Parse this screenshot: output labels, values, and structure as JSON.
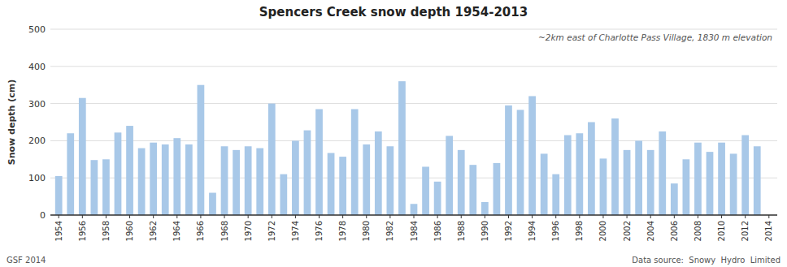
{
  "chart_data": {
    "type": "bar",
    "title": "Spencers Creek snow depth 1954-2013",
    "subtitle": "~2km east of Charlotte Pass Village, 1830 m elevation",
    "y_label": "Snow depth (cm)",
    "annotations": [
      "GSF 2014",
      "Data source:  Snowy  Hydro  Limited"
    ],
    "x": [
      1954,
      1955,
      1956,
      1957,
      1958,
      1959,
      1960,
      1961,
      1962,
      1963,
      1964,
      1965,
      1966,
      1967,
      1968,
      1969,
      1970,
      1971,
      1972,
      1973,
      1974,
      1975,
      1976,
      1977,
      1978,
      1979,
      1980,
      1981,
      1982,
      1983,
      1984,
      1985,
      1986,
      1987,
      1988,
      1989,
      1990,
      1991,
      1992,
      1993,
      1994,
      1995,
      1996,
      1997,
      1998,
      1999,
      2000,
      2001,
      2002,
      2003,
      2004,
      2005,
      2006,
      2007,
      2008,
      2009,
      2010,
      2011,
      2012,
      2013,
      2014
    ],
    "values": [
      105,
      220,
      315,
      148,
      150,
      222,
      240,
      180,
      195,
      190,
      207,
      190,
      350,
      60,
      185,
      175,
      185,
      180,
      300,
      110,
      200,
      228,
      285,
      167,
      157,
      285,
      190,
      225,
      185,
      360,
      30,
      130,
      90,
      213,
      175,
      135,
      35,
      140,
      295,
      283,
      320,
      165,
      110,
      215,
      220,
      250,
      152,
      260,
      175,
      200,
      175,
      225,
      85,
      150,
      195,
      170,
      195,
      165,
      215,
      185,
      0
    ],
    "color": "#a8c8e8",
    "xlim": [
      1953.3,
      2014.7
    ],
    "xticks": [
      1954,
      1956,
      1958,
      1960,
      1962,
      1964,
      1966,
      1968,
      1970,
      1972,
      1974,
      1976,
      1978,
      1980,
      1982,
      1984,
      1986,
      1988,
      1990,
      1992,
      1994,
      1996,
      1998,
      2000,
      2002,
      2004,
      2006,
      2008,
      2010,
      2012,
      2014
    ],
    "ylim": [
      0,
      500
    ],
    "yticks": [
      0,
      100,
      200,
      300,
      400,
      500
    ],
    "grid": true
  }
}
